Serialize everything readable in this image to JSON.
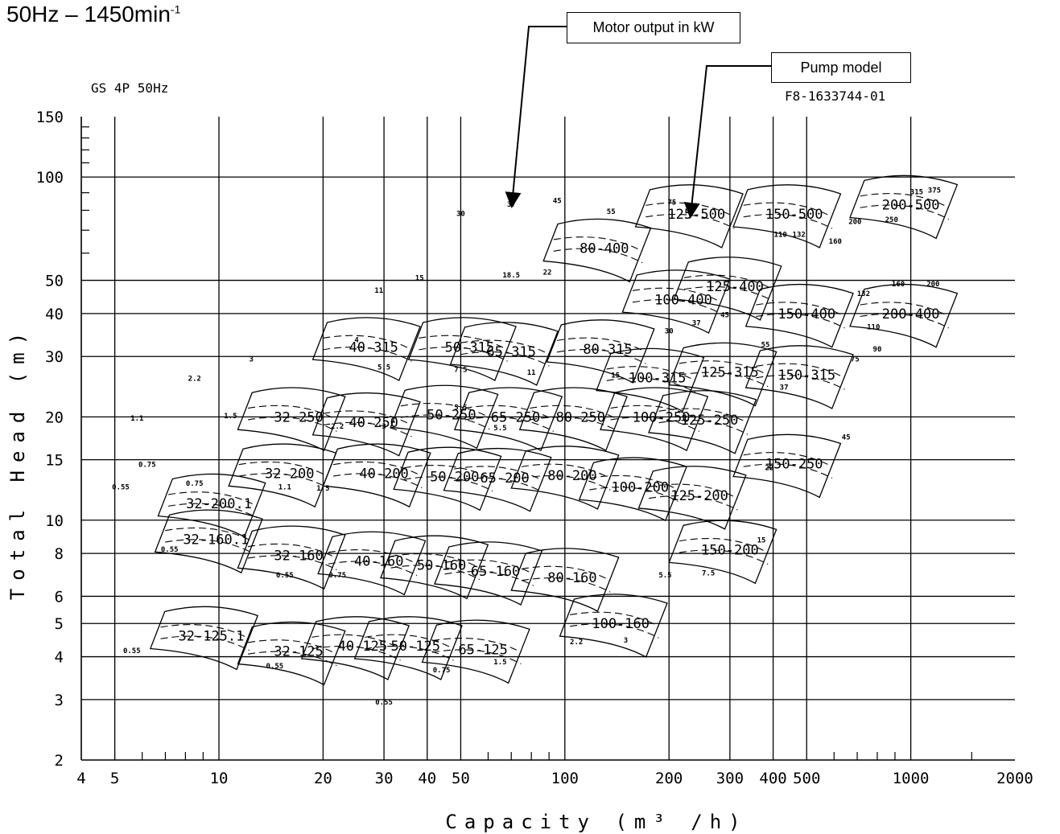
{
  "header": {
    "speed": "50Hz – 1450min",
    "speed_sup": "-1",
    "series_label": "GS 4P 50Hz",
    "doc_number": "F8-1633744-01"
  },
  "callouts": {
    "motor_output": "Motor output in kW",
    "pump_model": "Pump model"
  },
  "chart_data": {
    "type": "area",
    "xlabel": "Capacity (m³ /h)",
    "ylabel": "Total Head (m)",
    "x_scale": "log",
    "y_scale": "log",
    "xlim": [
      4,
      2000
    ],
    "ylim": [
      2,
      150
    ],
    "x_ticks": [
      4,
      5,
      10,
      20,
      30,
      40,
      50,
      100,
      200,
      300,
      400,
      500,
      1000,
      2000
    ],
    "y_ticks": [
      2,
      3,
      4,
      5,
      6,
      8,
      10,
      15,
      20,
      30,
      40,
      50,
      100,
      150
    ],
    "grid": true,
    "pumps": [
      {
        "model": "32-125.1",
        "x": 9.5,
        "y": 4.6
      },
      {
        "model": "32-125",
        "x": 17,
        "y": 4.15
      },
      {
        "model": "32-160.1",
        "x": 9.8,
        "y": 8.8
      },
      {
        "model": "32-160",
        "x": 17,
        "y": 7.9
      },
      {
        "model": "32-200.1",
        "x": 10,
        "y": 11.2
      },
      {
        "model": "32-200",
        "x": 16,
        "y": 13.7
      },
      {
        "model": "32-250",
        "x": 17,
        "y": 20
      },
      {
        "model": "40-125",
        "x": 26,
        "y": 4.3
      },
      {
        "model": "40-160",
        "x": 29,
        "y": 7.6
      },
      {
        "model": "40-200",
        "x": 30,
        "y": 13.7
      },
      {
        "model": "40-250",
        "x": 28,
        "y": 19.3
      },
      {
        "model": "40-315",
        "x": 28,
        "y": 32
      },
      {
        "model": "50-125",
        "x": 37,
        "y": 4.3
      },
      {
        "model": "50-160",
        "x": 44,
        "y": 7.4
      },
      {
        "model": "50-200",
        "x": 48,
        "y": 13.4
      },
      {
        "model": "50-250",
        "x": 47,
        "y": 20.3
      },
      {
        "model": "50-315",
        "x": 53,
        "y": 32
      },
      {
        "model": "65-125",
        "x": 58,
        "y": 4.2
      },
      {
        "model": "65-160",
        "x": 63,
        "y": 7.1
      },
      {
        "model": "65-200",
        "x": 67,
        "y": 13.3
      },
      {
        "model": "65-250",
        "x": 72,
        "y": 20
      },
      {
        "model": "65-315",
        "x": 70,
        "y": 31
      },
      {
        "model": "80-160",
        "x": 105,
        "y": 6.8
      },
      {
        "model": "80-200",
        "x": 105,
        "y": 13.5
      },
      {
        "model": "80-250",
        "x": 111,
        "y": 20
      },
      {
        "model": "80-315",
        "x": 133,
        "y": 31.5
      },
      {
        "model": "80-400",
        "x": 130,
        "y": 62
      },
      {
        "model": "100-160",
        "x": 145,
        "y": 5
      },
      {
        "model": "100-200",
        "x": 165,
        "y": 12.5
      },
      {
        "model": "100-250",
        "x": 190,
        "y": 20
      },
      {
        "model": "100-315",
        "x": 185,
        "y": 26
      },
      {
        "model": "100-400",
        "x": 220,
        "y": 44
      },
      {
        "model": "125-200",
        "x": 245,
        "y": 11.8
      },
      {
        "model": "125-250",
        "x": 262,
        "y": 19.6
      },
      {
        "model": "125-315",
        "x": 300,
        "y": 27
      },
      {
        "model": "125-400",
        "x": 310,
        "y": 48
      },
      {
        "model": "125-500",
        "x": 240,
        "y": 78
      },
      {
        "model": "150-200",
        "x": 300,
        "y": 8.2
      },
      {
        "model": "150-250",
        "x": 460,
        "y": 14.6
      },
      {
        "model": "150-315",
        "x": 500,
        "y": 26.5
      },
      {
        "model": "150-400",
        "x": 500,
        "y": 40
      },
      {
        "model": "150-500",
        "x": 460,
        "y": 78
      },
      {
        "model": "200-400",
        "x": 1000,
        "y": 40
      },
      {
        "model": "200-500",
        "x": 1000,
        "y": 83
      }
    ],
    "motor_labels": [
      {
        "kw": "0.55",
        "x": 5.6,
        "y": 4.1
      },
      {
        "kw": "0.55",
        "x": 7.2,
        "y": 8.1
      },
      {
        "kw": "0.55",
        "x": 5.2,
        "y": 12.3
      },
      {
        "kw": "0.75",
        "x": 6.2,
        "y": 14.3
      },
      {
        "kw": "0.75",
        "x": 8.5,
        "y": 12.6
      },
      {
        "kw": "1.1",
        "x": 5.8,
        "y": 19.5
      },
      {
        "kw": "2.2",
        "x": 8.5,
        "y": 25.5
      },
      {
        "kw": "3",
        "x": 12.4,
        "y": 29
      },
      {
        "kw": "4",
        "x": 25,
        "y": 33
      },
      {
        "kw": "11",
        "x": 29,
        "y": 46
      },
      {
        "kw": "15",
        "x": 38,
        "y": 50
      },
      {
        "kw": "18.5",
        "x": 70,
        "y": 51
      },
      {
        "kw": "22",
        "x": 89,
        "y": 52
      },
      {
        "kw": "30",
        "x": 50,
        "y": 77
      },
      {
        "kw": "37",
        "x": 70,
        "y": 82
      },
      {
        "kw": "45",
        "x": 95,
        "y": 84
      },
      {
        "kw": "55",
        "x": 136,
        "y": 78
      },
      {
        "kw": "75",
        "x": 204,
        "y": 83
      },
      {
        "kw": "110",
        "x": 420,
        "y": 67
      },
      {
        "kw": "132",
        "x": 475,
        "y": 67
      },
      {
        "kw": "160",
        "x": 605,
        "y": 64
      },
      {
        "kw": "200",
        "x": 690,
        "y": 73
      },
      {
        "kw": "250",
        "x": 880,
        "y": 74
      },
      {
        "kw": "315",
        "x": 1040,
        "y": 89
      },
      {
        "kw": "375",
        "x": 1170,
        "y": 90
      },
      {
        "kw": "200",
        "x": 1160,
        "y": 48
      },
      {
        "kw": "160",
        "x": 920,
        "y": 48
      },
      {
        "kw": "132",
        "x": 730,
        "y": 45
      },
      {
        "kw": "110",
        "x": 780,
        "y": 36
      },
      {
        "kw": "90",
        "x": 800,
        "y": 31
      },
      {
        "kw": "75",
        "x": 690,
        "y": 29
      },
      {
        "kw": "15",
        "x": 140,
        "y": 26
      },
      {
        "kw": "11",
        "x": 80,
        "y": 26.5
      },
      {
        "kw": "30",
        "x": 200,
        "y": 35
      },
      {
        "kw": "37",
        "x": 240,
        "y": 37
      },
      {
        "kw": "45",
        "x": 290,
        "y": 39
      },
      {
        "kw": "55",
        "x": 380,
        "y": 32
      },
      {
        "kw": "37",
        "x": 430,
        "y": 24
      },
      {
        "kw": "45",
        "x": 650,
        "y": 17.2
      },
      {
        "kw": "22",
        "x": 390,
        "y": 14
      },
      {
        "kw": "15",
        "x": 370,
        "y": 8.6
      },
      {
        "kw": "7.5",
        "x": 260,
        "y": 6.9
      },
      {
        "kw": "5.5",
        "x": 195,
        "y": 6.8
      },
      {
        "kw": "3",
        "x": 150,
        "y": 4.4
      },
      {
        "kw": "2.2",
        "x": 108,
        "y": 4.35
      },
      {
        "kw": "1.5",
        "x": 65,
        "y": 3.8
      },
      {
        "kw": "0.75",
        "x": 44,
        "y": 3.6
      },
      {
        "kw": "0.55",
        "x": 30,
        "y": 2.9
      },
      {
        "kw": "0.55",
        "x": 14.5,
        "y": 3.7
      },
      {
        "kw": "5.5",
        "x": 30,
        "y": 27.5
      },
      {
        "kw": "7.5",
        "x": 50,
        "y": 27
      },
      {
        "kw": "5.5",
        "x": 50,
        "y": 21
      },
      {
        "kw": "5.5",
        "x": 65,
        "y": 18.3
      },
      {
        "kw": "3",
        "x": 30,
        "y": 18.5
      },
      {
        "kw": "2.2",
        "x": 22,
        "y": 18.5
      },
      {
        "kw": "1.5",
        "x": 10.8,
        "y": 19.8
      },
      {
        "kw": "1.5",
        "x": 20,
        "y": 12.2
      },
      {
        "kw": "1.1",
        "x": 15.5,
        "y": 12.3
      },
      {
        "kw": "0.75",
        "x": 22,
        "y": 6.8
      },
      {
        "kw": "0.55",
        "x": 15.5,
        "y": 6.8
      }
    ]
  }
}
